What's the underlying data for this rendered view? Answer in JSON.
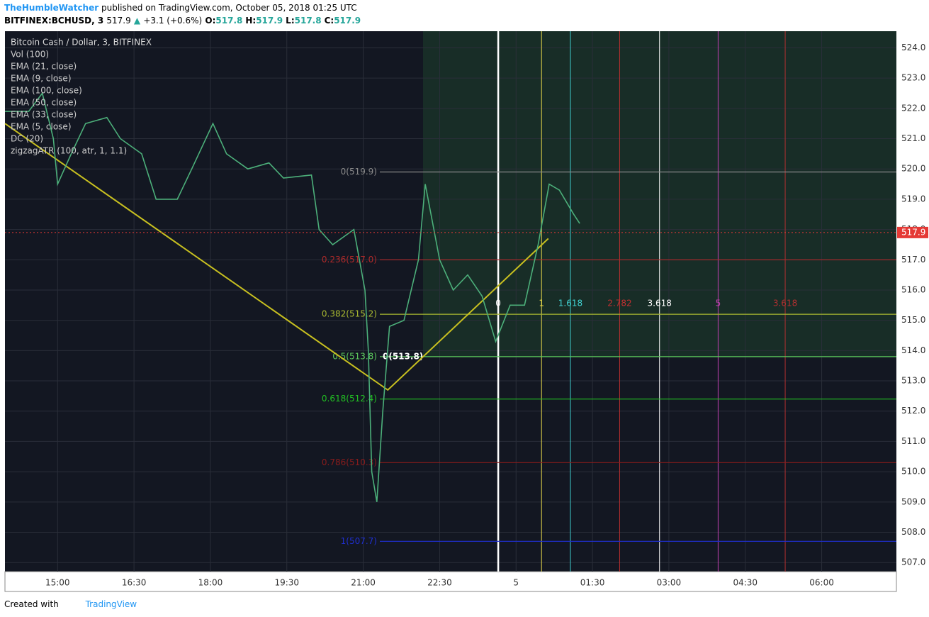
{
  "header": {
    "author": "TheHumbleWatcher",
    "published": "published on TradingView.com, October 05, 2018 01:25 UTC"
  },
  "symbol_bar": {
    "symbol": "BITFINEX:BCHUSD, 3",
    "last": 517.9,
    "arrow": "▲",
    "change": "+3.1 (+0.6%)",
    "ohlc": [
      {
        "label": "O:",
        "value": 517.8
      },
      {
        "label": "H:",
        "value": 517.9
      },
      {
        "label": "L:",
        "value": 517.8
      },
      {
        "label": "C:",
        "value": 517.9
      }
    ]
  },
  "chart_data": {
    "type": "line",
    "title": "Bitcoin Cash / Dollar, 3, BITFINEX",
    "indicators": [
      "Vol (100)",
      "EMA (21, close)",
      "EMA (9, close)",
      "EMA (100, close)",
      "EMA (50, close)",
      "EMA (33, close)",
      "EMA (5, close)",
      "DC (20)",
      "zigzagATR (100, atr, 1, 1.1)"
    ],
    "x": [
      "13:58",
      "14:26",
      "14:42",
      "14:55",
      "15:00",
      "15:16",
      "15:33",
      "15:58",
      "16:14",
      "16:39",
      "16:56",
      "17:21",
      "17:38",
      "18:03",
      "18:19",
      "18:44",
      "19:09",
      "19:26",
      "19:59",
      "20:08",
      "20:24",
      "20:49",
      "21:02",
      "21:06",
      "21:10",
      "21:16",
      "21:23",
      "21:31",
      "21:48",
      "22:05",
      "22:13",
      "22:30",
      "22:46",
      "23:03",
      "23:20",
      "23:36",
      "23:53",
      "00:10",
      "00:26",
      "00:39",
      "00:51",
      "01:08",
      "01:15"
    ],
    "series": [
      {
        "color": "#4caf7a",
        "values": [
          521.9,
          521.9,
          522.5,
          521,
          519.5,
          520.5,
          521.5,
          521.7,
          521,
          520.5,
          519,
          519,
          520,
          521.5,
          520.5,
          520,
          520.2,
          519.7,
          519.8,
          518,
          517.5,
          518,
          516,
          514,
          510,
          509,
          512,
          514.8,
          515,
          517,
          519.5,
          517,
          516,
          516.5,
          515.8,
          514.3,
          515.5,
          515.5,
          517.5,
          519.5,
          519.3,
          518.5,
          518.2
        ]
      }
    ],
    "zigzag": {
      "color": "#c8c020",
      "x": [
        "13:58",
        "21:29",
        "00:38"
      ],
      "values": [
        521.5,
        512.7,
        517.7
      ]
    },
    "fib_levels": [
      {
        "label": "0(519.9)",
        "value": 519.9,
        "color": "#8a8a8a"
      },
      {
        "label": "0.236(517.0)",
        "value": 517.0,
        "color": "#b02a2a"
      },
      {
        "label": "0.382(515.2)",
        "value": 515.2,
        "color": "#a8b830"
      },
      {
        "label": "0.5(513.8)",
        "value": 513.8,
        "color": "#5cc85c"
      },
      {
        "label": "0.618(512.4)",
        "value": 512.4,
        "color": "#22c022"
      },
      {
        "label": "0.786(510.3)",
        "value": 510.3,
        "color": "#8a1c1c"
      },
      {
        "label": "1(507.7)",
        "value": 507.7,
        "color": "#1f2fd0"
      }
    ],
    "fib_anchor_label": "0(513.8)",
    "fib_times": [
      {
        "label": "0",
        "x": "23:39",
        "color": "#ffffff"
      },
      {
        "label": "1",
        "x": "00:30",
        "color": "#e8d84a"
      },
      {
        "label": "1.618",
        "x": "01:04",
        "color": "#40d0d0"
      },
      {
        "label": "2.782",
        "x": "02:02",
        "color": "#c03030"
      },
      {
        "label": "3.618",
        "x": "02:49",
        "color": "#ffffff"
      },
      {
        "label": "5",
        "x": "03:58",
        "color": "#c040b0"
      },
      {
        "label": "3.618",
        "x": "05:17",
        "color": "#b03030"
      }
    ],
    "last_price": 517.9,
    "xlim": [
      "13:58",
      "07:28"
    ],
    "ylim": [
      506.7,
      524.55
    ],
    "xticks": [
      "15:00",
      "16:30",
      "18:00",
      "19:30",
      "21:00",
      "22:30",
      {
        "value": "00:00",
        "label": "5"
      },
      "01:30",
      "03:00",
      "04:30",
      "06:00"
    ],
    "yticks": [
      {
        "value": 507,
        "label": "507.0"
      },
      {
        "value": 508,
        "label": "508.0"
      },
      {
        "value": 509,
        "label": "509.0"
      },
      {
        "value": 510,
        "label": "510.0"
      },
      {
        "value": 511,
        "label": "511.0"
      },
      {
        "value": 512,
        "label": "512.0"
      },
      {
        "value": 513,
        "label": "513.0"
      },
      {
        "value": 514,
        "label": "514.0"
      },
      {
        "value": 515,
        "label": "515.0"
      },
      {
        "value": 516,
        "label": "516.0"
      },
      {
        "value": 517,
        "label": "517.0"
      },
      {
        "value": 518,
        "label": "518.0"
      },
      {
        "value": 519,
        "label": "519.0"
      },
      {
        "value": 520,
        "label": "520.0"
      },
      {
        "value": 521,
        "label": "521.0"
      },
      {
        "value": 522,
        "label": "522.0"
      },
      {
        "value": 523,
        "label": "523.0"
      },
      {
        "value": 524,
        "label": "524.0"
      }
    ],
    "grid": true
  },
  "footer": {
    "created": "Created with",
    "brand": "TradingView"
  }
}
